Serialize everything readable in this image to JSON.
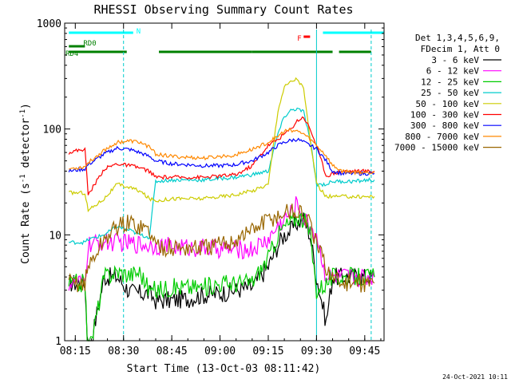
{
  "chart_data": {
    "type": "line",
    "title": "RHESSI Observing Summary Count Rates",
    "xlabel": "Start Time (13-Oct-03 08:11:42)",
    "ylabel": "Count Rate (s",
    "ylabel_sup": "-1",
    "ylabel_tail": " detector",
    "ylabel_close": ")",
    "y_scale": "log",
    "ylim": [
      1,
      1000
    ],
    "xlim": [
      "08:11:42",
      "09:51:00"
    ],
    "x_ticks": [
      "08:15",
      "08:30",
      "08:45",
      "09:00",
      "09:15",
      "09:30",
      "09:45"
    ],
    "y_ticks": [
      "1",
      "10",
      "100",
      "1000"
    ],
    "legend_header": [
      "Det 1,3,4,5,6,9,",
      "FDecim 1, Att 0"
    ],
    "legend_position": "right",
    "timestamp": "24-Oct-2021 10:11",
    "x": [
      "08:13",
      "08:18",
      "08:19",
      "08:24",
      "08:28",
      "08:32",
      "08:35",
      "08:38",
      "08:40",
      "08:45",
      "08:50",
      "08:55",
      "09:00",
      "09:05",
      "09:07",
      "09:10",
      "09:15",
      "09:18",
      "09:20",
      "09:22",
      "09:24",
      "09:26",
      "09:28",
      "09:30",
      "09:33",
      "09:35",
      "09:38",
      "09:42",
      "09:46",
      "09:48"
    ],
    "series": [
      {
        "name": "3 - 6 keV",
        "color": "#000000",
        "values": [
          3.5,
          3.5,
          0.7,
          4,
          4,
          2.9,
          2.8,
          2.8,
          2.4,
          2.4,
          2.5,
          2.7,
          2.8,
          3.0,
          3.1,
          3.2,
          5,
          8,
          10,
          11,
          13,
          14,
          10,
          4,
          1.5,
          4,
          4,
          4,
          4,
          4
        ]
      },
      {
        "name": "6 - 12 keV",
        "color": "#ff00ff",
        "values": [
          3.5,
          3.5,
          8,
          8.5,
          8.5,
          8.3,
          8.2,
          8,
          8,
          7.7,
          7.6,
          7.5,
          7.4,
          7.3,
          7.3,
          7.3,
          9,
          12,
          14,
          16,
          20,
          14,
          12,
          10,
          4,
          4,
          4,
          4,
          4,
          4
        ]
      },
      {
        "name": "12 - 25 keV",
        "color": "#00cc00",
        "values": [
          3.5,
          3.5,
          0.7,
          4,
          4.5,
          4.2,
          4.5,
          3,
          3,
          3.2,
          3.2,
          3.2,
          3.5,
          3.5,
          3.5,
          3.6,
          6,
          10,
          12,
          13,
          15,
          14,
          10,
          3,
          3.5,
          4,
          4,
          4,
          4,
          4
        ]
      },
      {
        "name": "25 - 50 keV",
        "color": "#00cccc",
        "values": [
          8.5,
          8.5,
          9,
          10,
          12,
          11,
          10,
          9.5,
          32,
          33,
          33,
          33,
          34,
          35,
          36,
          37,
          40,
          90,
          130,
          150,
          155,
          145,
          80,
          30,
          30,
          32,
          32,
          32,
          33,
          33
        ]
      },
      {
        "name": "50 - 100 keV",
        "color": "#cccc00",
        "values": [
          25,
          25,
          17,
          22,
          30,
          28,
          26,
          22,
          21,
          22,
          22,
          22,
          23,
          24,
          25,
          26,
          30,
          150,
          250,
          280,
          300,
          240,
          80,
          30,
          23,
          23,
          23,
          23,
          23,
          23
        ]
      },
      {
        "name": "100 - 300 keV",
        "color": "#ff0000",
        "values": [
          60,
          65,
          24,
          42,
          47,
          45,
          43,
          40,
          35,
          35,
          35,
          35,
          36,
          37,
          40,
          45,
          70,
          80,
          90,
          100,
          120,
          130,
          100,
          70,
          36,
          38,
          40,
          40,
          40,
          40
        ]
      },
      {
        "name": "300 - 800 keV",
        "color": "#0000ff",
        "values": [
          40,
          42,
          46,
          58,
          66,
          64,
          60,
          55,
          50,
          47,
          46,
          45,
          45,
          46,
          48,
          50,
          60,
          70,
          75,
          78,
          80,
          75,
          70,
          65,
          50,
          40,
          38,
          38,
          38,
          38
        ]
      },
      {
        "name": "800 - 7000 keV",
        "color": "#ff8800",
        "values": [
          42,
          44,
          48,
          63,
          75,
          77,
          75,
          68,
          58,
          55,
          54,
          53,
          55,
          57,
          60,
          64,
          75,
          85,
          95,
          98,
          95,
          90,
          80,
          70,
          56,
          45,
          40,
          39,
          39,
          39
        ]
      },
      {
        "name": "7000 - 15000 keV",
        "color": "#996600",
        "values": [
          3.5,
          3.5,
          5,
          9,
          12,
          13,
          12,
          11,
          8,
          7.5,
          7.5,
          7.5,
          8,
          9,
          10,
          11,
          14,
          15,
          16,
          17,
          16,
          16,
          12,
          8,
          5,
          4,
          3.5,
          3.5,
          3.5,
          3.5
        ]
      }
    ],
    "state_markers": [
      {
        "label": "N",
        "color": "#00ffff",
        "ranges": [
          [
            "08:13",
            "08:33"
          ],
          [
            "09:32",
            "09:51"
          ]
        ]
      },
      {
        "label": "F",
        "color": "#ff0000",
        "ranges": [
          [
            "09:26",
            "09:28"
          ]
        ]
      },
      {
        "label": "RD0",
        "color": "#008000",
        "ranges": [
          [
            "08:13",
            "08:18"
          ]
        ]
      },
      {
        "label": "RD4",
        "color": "#008000",
        "ranges": [
          [
            "08:13",
            "08:31"
          ],
          [
            "08:41",
            "09:10"
          ],
          [
            "09:10",
            "09:35"
          ],
          [
            "09:37",
            "09:47"
          ]
        ]
      }
    ],
    "vlines_dashed": [
      "08:30",
      "09:47"
    ],
    "vlines_solid": [
      "09:30"
    ]
  }
}
